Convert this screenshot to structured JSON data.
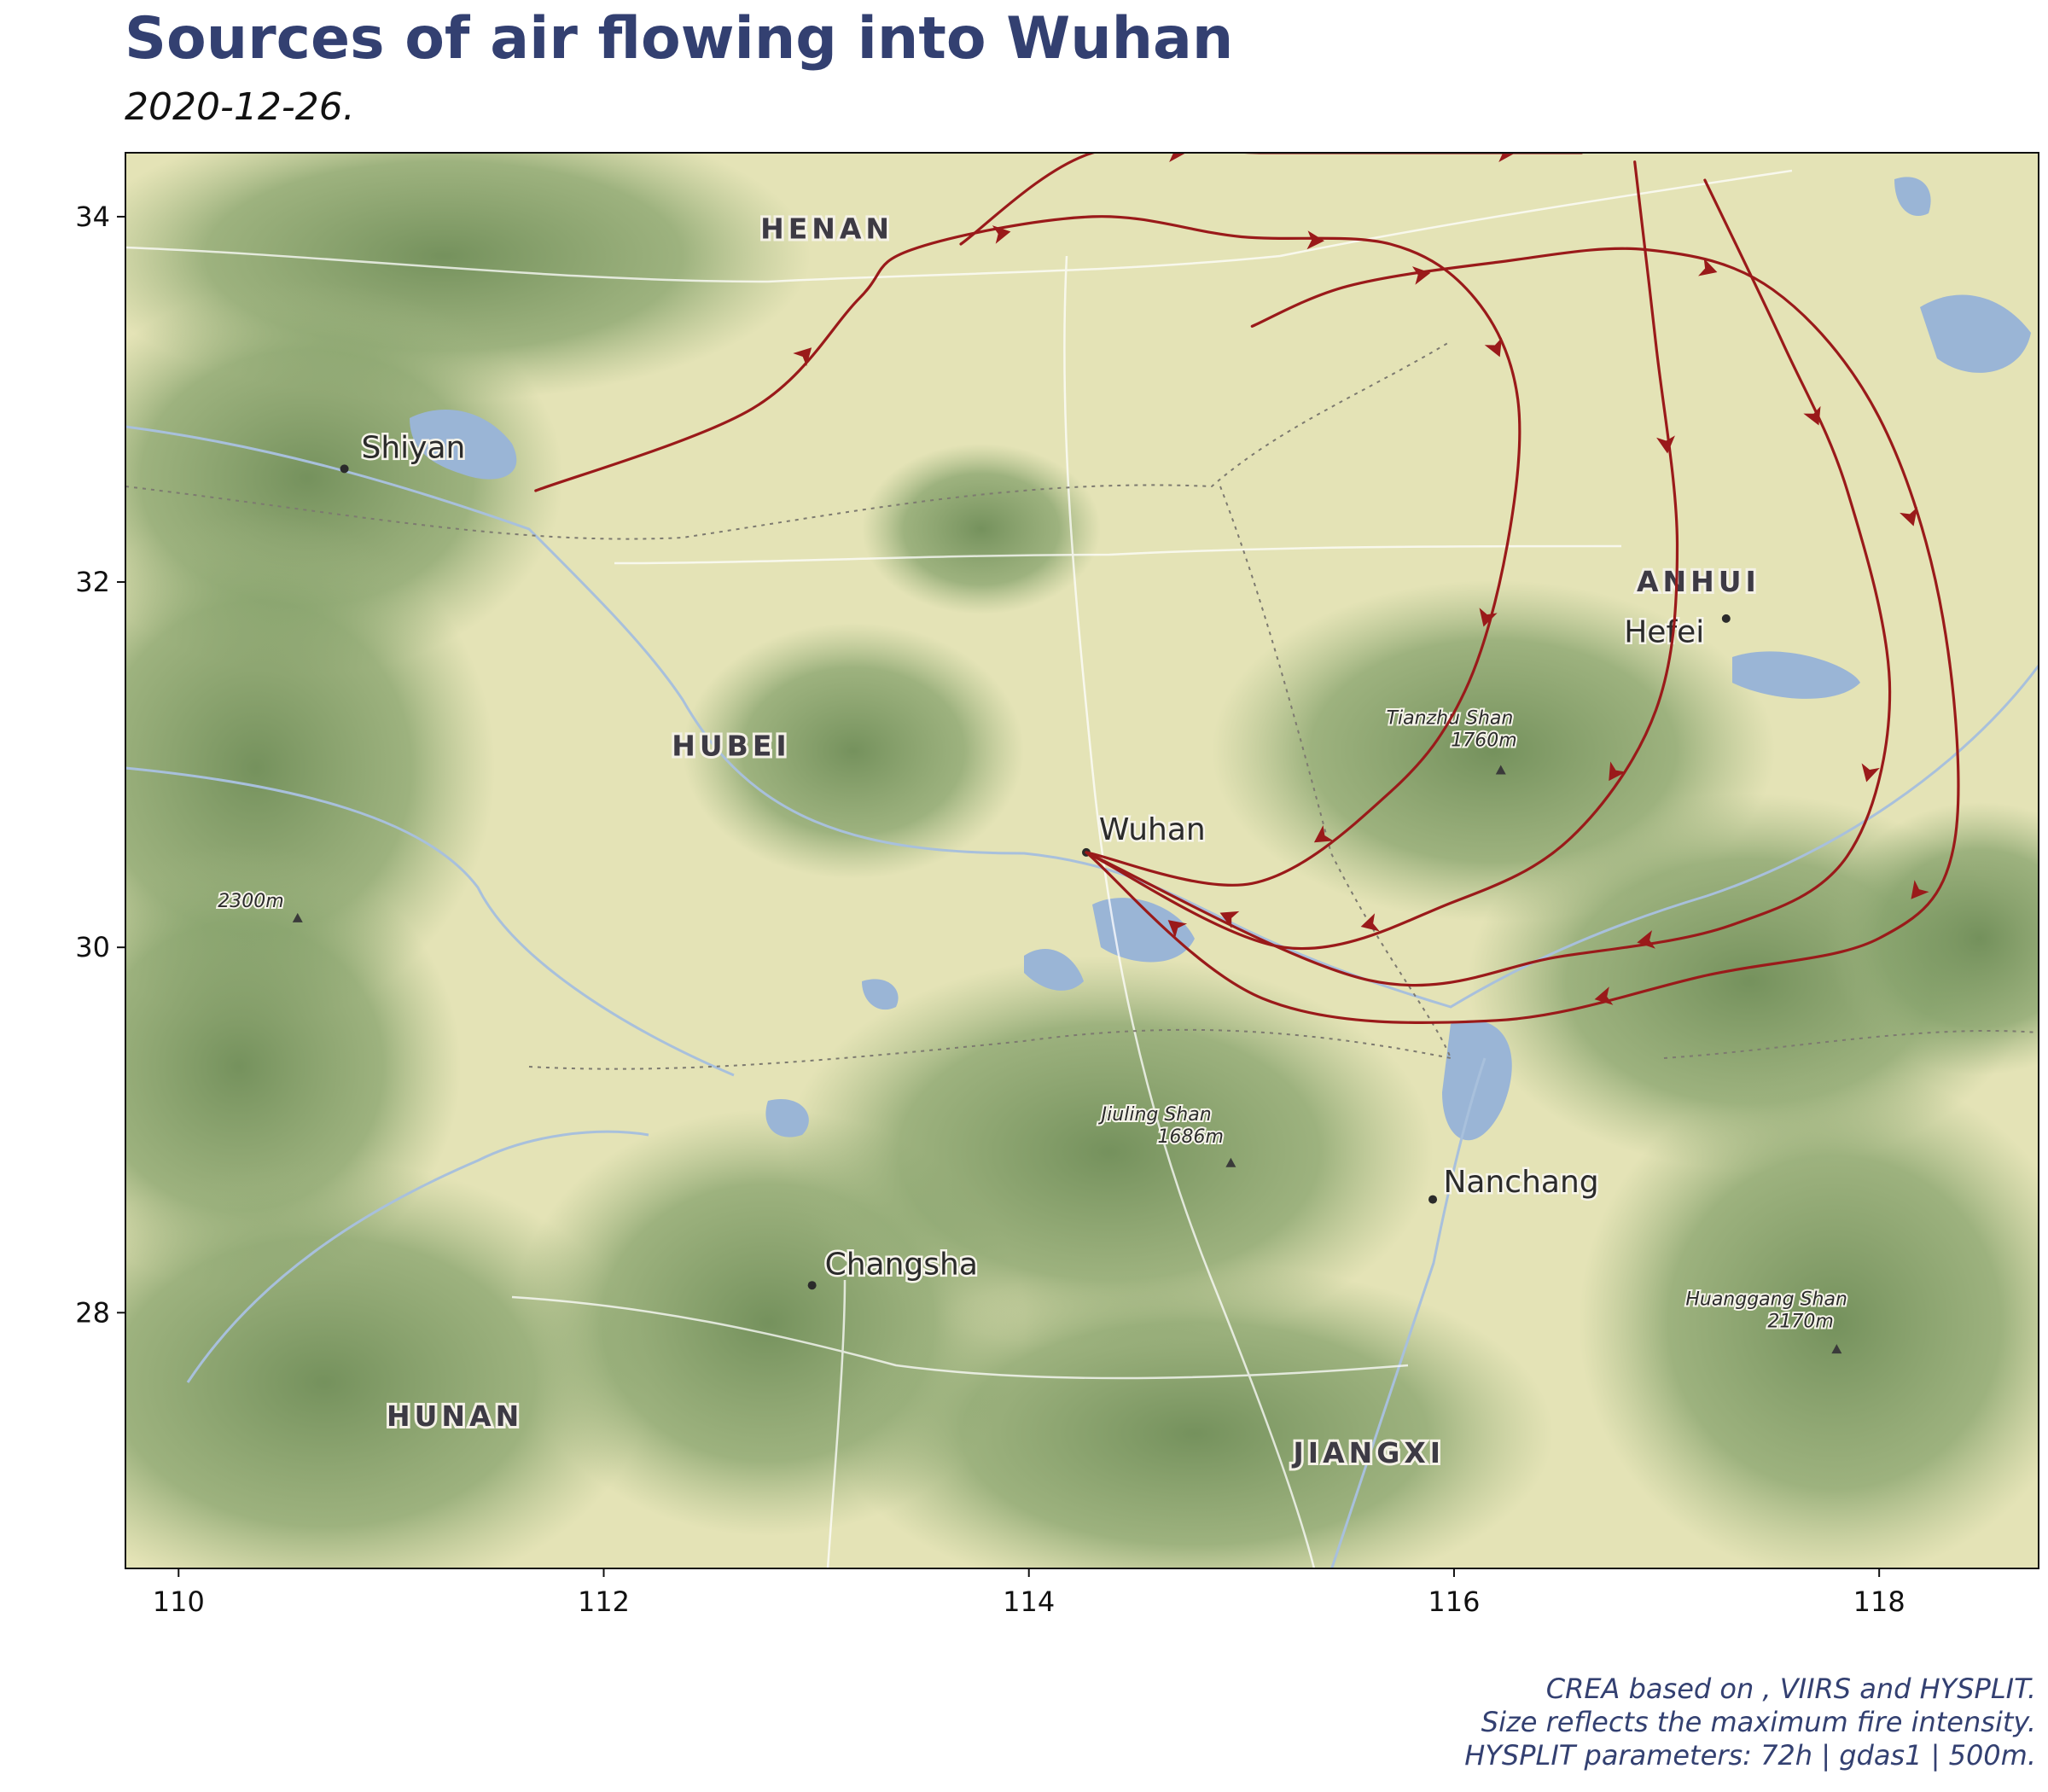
{
  "title": "Sources of air flowing into Wuhan",
  "subtitle": "2020-12-26.",
  "caption": [
    "CREA based on , VIIRS and HYSPLIT.",
    "Size reflects the maximum fire intensity.",
    "HYSPLIT parameters: 72h | gdas1 | 500m."
  ],
  "map": {
    "lon_range": [
      109.75,
      118.75
    ],
    "lat_range": [
      26.6,
      34.35
    ],
    "x_ticks": [
      110,
      112,
      114,
      116,
      118
    ],
    "y_ticks": [
      28,
      30,
      32,
      34
    ],
    "colors": {
      "trajectory": "#9a1a1a",
      "lowland": "#e4e3b6",
      "forest": "#7f9c68",
      "water": "#9ab5d6",
      "road": "#ffffff"
    },
    "provinces": [
      {
        "name": "HENAN",
        "lon": 113.05,
        "lat": 33.88
      },
      {
        "name": "HUBEI",
        "lon": 112.6,
        "lat": 31.05
      },
      {
        "name": "ANHUI",
        "lon": 117.15,
        "lat": 31.95
      },
      {
        "name": "HUNAN",
        "lon": 111.3,
        "lat": 27.38
      },
      {
        "name": "JIANGXI",
        "lon": 115.6,
        "lat": 27.18
      }
    ],
    "cities": [
      {
        "name": "Shiyan",
        "lon": 110.78,
        "lat": 32.62,
        "label_dx": 0.08,
        "label_dy": 0.06
      },
      {
        "name": "Wuhan",
        "lon": 114.27,
        "lat": 30.52,
        "label_dx": 0.06,
        "label_dy": 0.07
      },
      {
        "name": "Hefei",
        "lon": 117.28,
        "lat": 31.8,
        "label_dx": -0.48,
        "label_dy": -0.13
      },
      {
        "name": "Nanchang",
        "lon": 115.9,
        "lat": 28.62,
        "label_dx": 0.05,
        "label_dy": 0.04
      },
      {
        "name": "Changsha",
        "lon": 112.98,
        "lat": 28.15,
        "label_dx": 0.06,
        "label_dy": 0.06
      }
    ],
    "peaks": [
      {
        "name": "Tianzhu Shan",
        "elevation": "1760m",
        "lon": 116.22,
        "lat": 30.97,
        "label_lon": 115.98,
        "label_lat": 31.1
      },
      {
        "name": "",
        "elevation": "2300m",
        "lon": 110.56,
        "lat": 30.16,
        "label_lon": 110.34,
        "label_lat": 30.22
      },
      {
        "name": "Jiuling Shan",
        "elevation": "1686m",
        "lon": 114.95,
        "lat": 28.82,
        "label_lon": 114.6,
        "label_lat": 28.93
      },
      {
        "name": "Huanggang Shan",
        "elevation": "2170m",
        "lon": 117.8,
        "lat": 27.8,
        "label_lon": 117.47,
        "label_lat": 27.92
      }
    ],
    "trajectories": [
      {
        "points": [
          [
            111.68,
            32.5
          ],
          [
            112.7,
            32.95
          ],
          [
            113.2,
            33.55
          ],
          [
            113.45,
            33.82
          ],
          [
            114.3,
            34.0
          ],
          [
            115.0,
            33.89
          ],
          [
            115.7,
            33.85
          ],
          [
            116.1,
            33.55
          ],
          [
            116.3,
            33.0
          ],
          [
            116.25,
            32.2
          ],
          [
            116.05,
            31.4
          ],
          [
            115.7,
            30.85
          ],
          [
            115.05,
            30.35
          ],
          [
            114.27,
            30.52
          ]
        ]
      },
      {
        "points": [
          [
            113.68,
            33.85
          ],
          [
            114.3,
            34.35
          ],
          [
            115.1,
            34.35
          ],
          [
            115.9,
            34.35
          ],
          [
            116.6,
            34.35
          ]
        ]
      },
      {
        "points": [
          [
            115.05,
            33.4
          ],
          [
            115.5,
            33.62
          ],
          [
            116.2,
            33.75
          ],
          [
            116.9,
            33.82
          ],
          [
            117.5,
            33.6
          ],
          [
            118.0,
            32.9
          ],
          [
            118.3,
            31.8
          ],
          [
            118.35,
            30.55
          ],
          [
            118.0,
            30.05
          ],
          [
            117.2,
            29.85
          ],
          [
            116.2,
            29.6
          ],
          [
            115.1,
            29.72
          ],
          [
            114.27,
            30.52
          ]
        ]
      },
      {
        "points": [
          [
            116.85,
            34.3
          ],
          [
            116.95,
            33.3
          ],
          [
            117.05,
            32.2
          ],
          [
            116.95,
            31.3
          ],
          [
            116.55,
            30.6
          ],
          [
            116.0,
            30.25
          ],
          [
            115.2,
            30.0
          ],
          [
            114.27,
            30.52
          ]
        ]
      },
      {
        "points": [
          [
            117.18,
            34.2
          ],
          [
            117.55,
            33.3
          ],
          [
            117.85,
            32.5
          ],
          [
            118.05,
            31.4
          ],
          [
            117.85,
            30.5
          ],
          [
            117.3,
            30.12
          ],
          [
            116.5,
            29.95
          ],
          [
            115.6,
            29.82
          ],
          [
            114.27,
            30.52
          ]
        ]
      }
    ]
  }
}
